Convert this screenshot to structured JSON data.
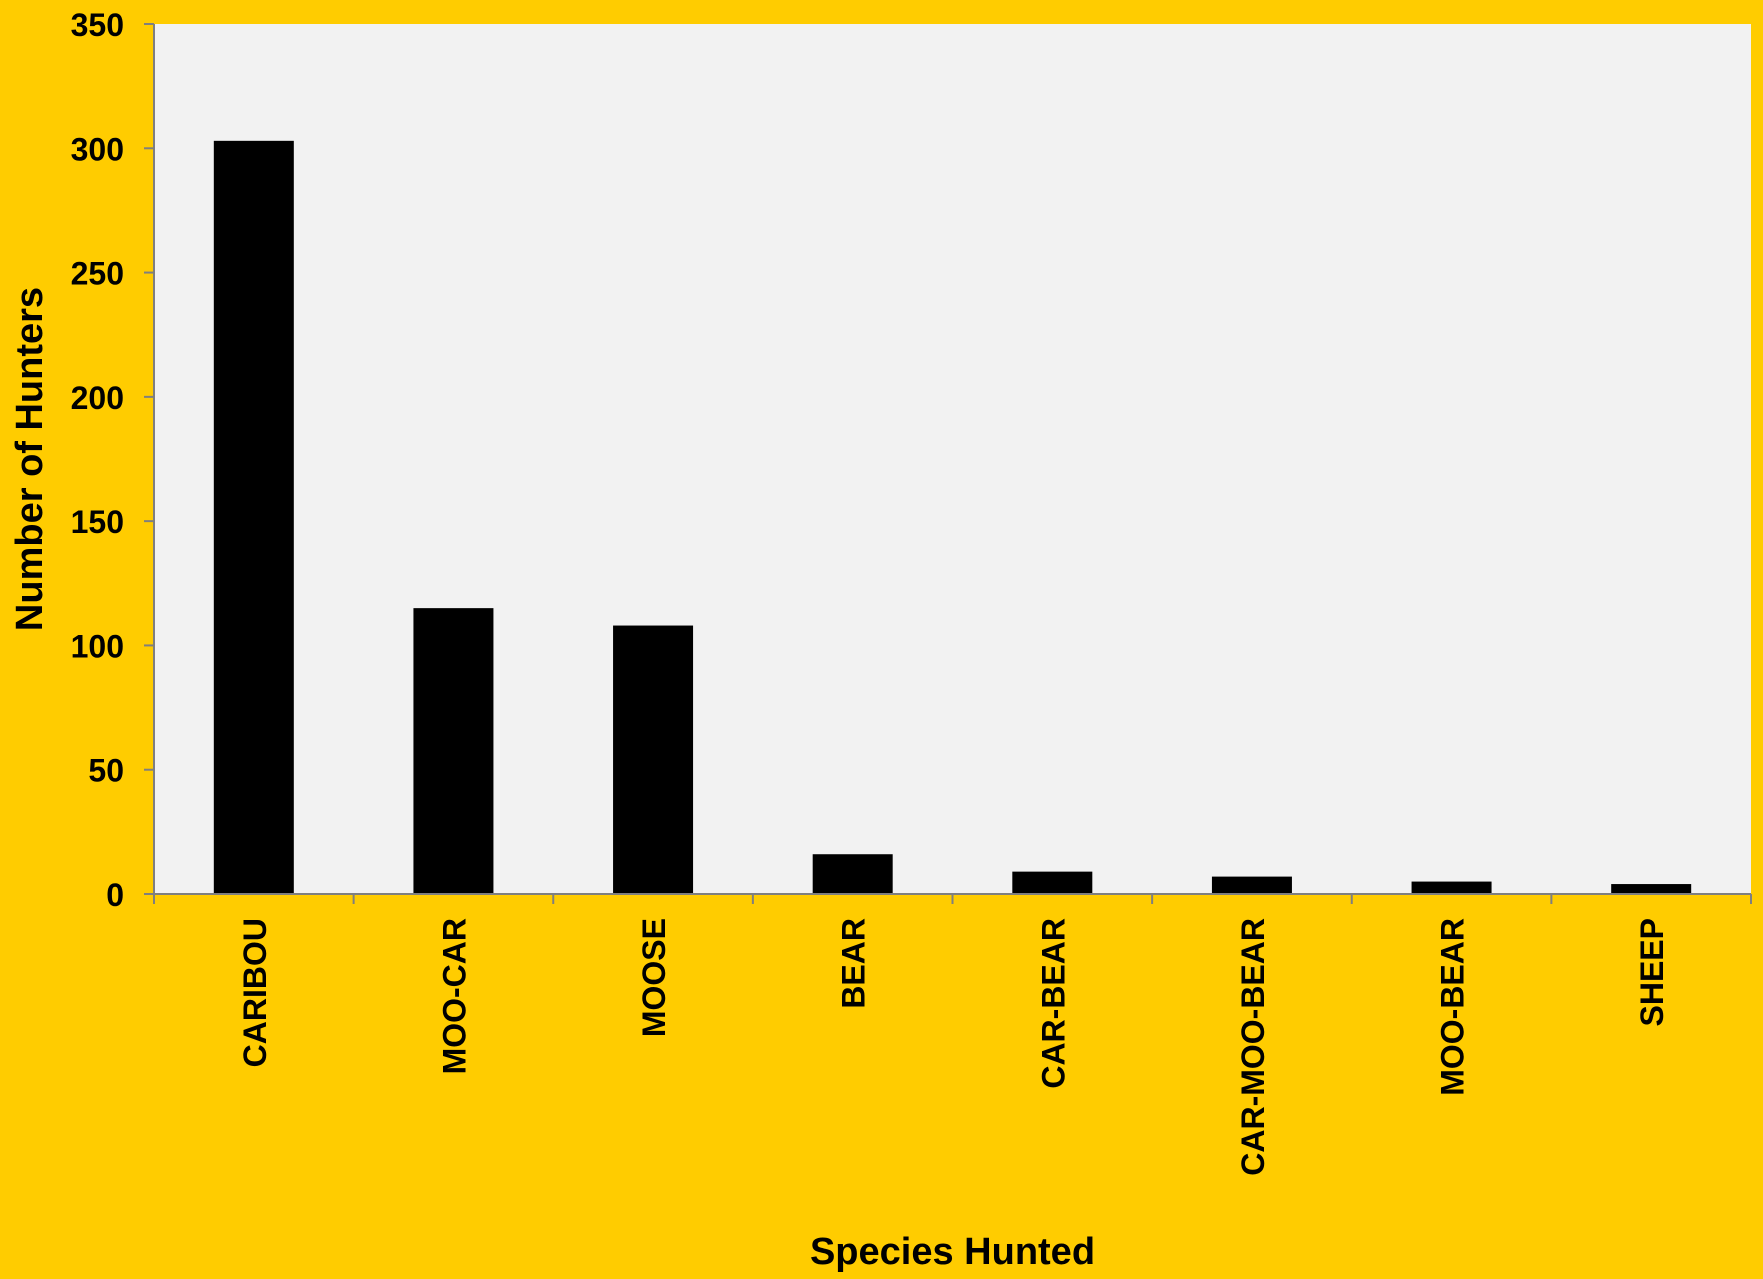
{
  "chart_data": {
    "type": "bar",
    "categories": [
      "CARIBOU",
      "MOO-CAR",
      "MOOSE",
      "BEAR",
      "CAR-BEAR",
      "CAR-MOO-BEAR",
      "MOO-BEAR",
      "SHEEP"
    ],
    "series": [
      {
        "values": [
          303,
          115,
          108,
          16,
          9,
          7,
          5,
          4
        ]
      }
    ],
    "xlabel": "Species Hunted",
    "ylabel": "Number of Hunters",
    "ylim": [
      0,
      350
    ],
    "yticks": [
      0,
      50,
      100,
      150,
      200,
      250,
      300,
      350
    ],
    "grid": false,
    "legend": "none"
  },
  "colors": {
    "page_background": "#FFCC00",
    "plot_background": "#F2F2F2",
    "bar_fill": "#000000",
    "axis_line": "#7F7F7F"
  }
}
